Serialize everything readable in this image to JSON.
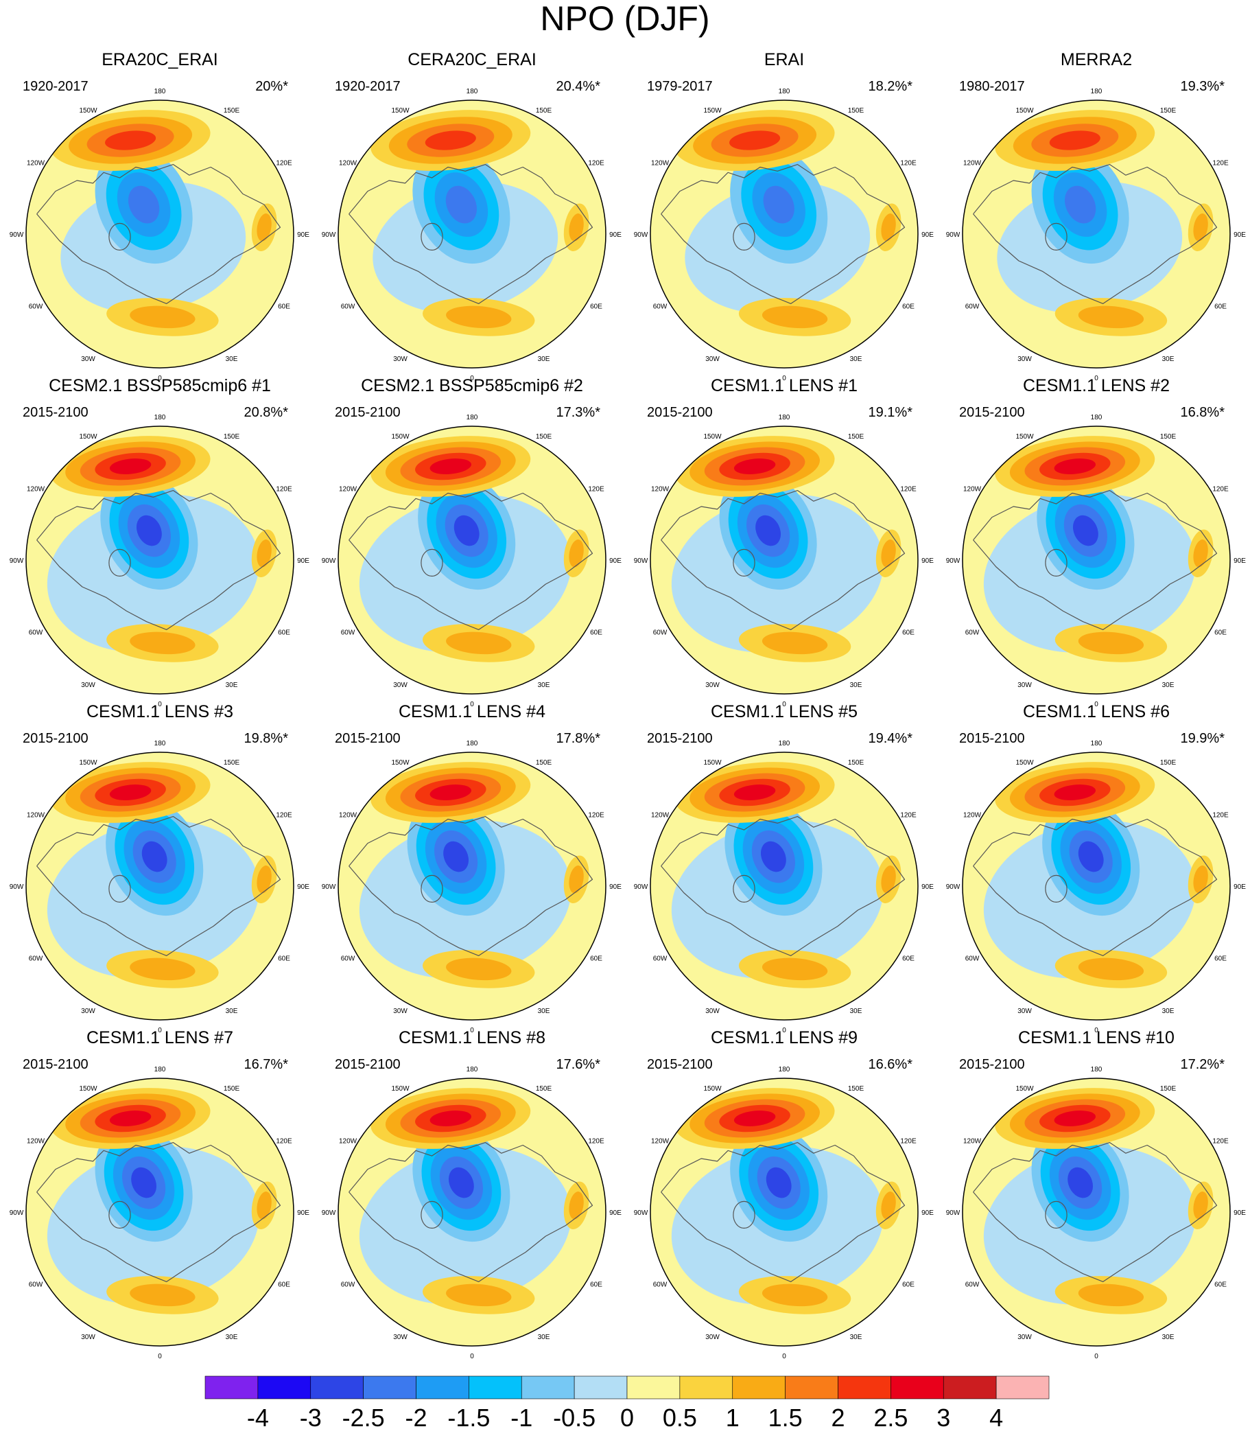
{
  "title": "NPO (DJF)",
  "longitude_labels": [
    "180",
    "150E",
    "120E",
    "90E",
    "60E",
    "30E",
    "0",
    "30W",
    "60W",
    "90W",
    "120W",
    "150W"
  ],
  "colorbar": {
    "levels": [
      "-4",
      "-3",
      "-2.5",
      "-2",
      "-1.5",
      "-1",
      "-0.5",
      "0",
      "0.5",
      "1",
      "1.5",
      "2",
      "2.5",
      "3",
      "4"
    ],
    "colors": [
      "#7f22ee",
      "#1c08f4",
      "#2d45e6",
      "#3c79ee",
      "#1e9cf4",
      "#04c1fb",
      "#76c8f4",
      "#b3def5",
      "#fbf79b",
      "#fad33e",
      "#f9ab15",
      "#f97c18",
      "#f5360e",
      "#e9001b",
      "#cc1d20",
      "#fbb3b3"
    ]
  },
  "chart_data": [
    {
      "type": "map",
      "title": "ERA20C_ERAI",
      "period": "1920-2017",
      "variance": "20%*"
    },
    {
      "type": "map",
      "title": "CERA20C_ERAI",
      "period": "1920-2017",
      "variance": "20.4%*"
    },
    {
      "type": "map",
      "title": "ERAI",
      "period": "1979-2017",
      "variance": "18.2%*"
    },
    {
      "type": "map",
      "title": "MERRA2",
      "period": "1980-2017",
      "variance": "19.3%*"
    },
    {
      "type": "map",
      "title": "CESM2.1 BSSP585cmip6 #1",
      "period": "2015-2100",
      "variance": "20.8%*"
    },
    {
      "type": "map",
      "title": "CESM2.1 BSSP585cmip6 #2",
      "period": "2015-2100",
      "variance": "17.3%*"
    },
    {
      "type": "map",
      "title": "CESM1.1 LENS #1",
      "period": "2015-2100",
      "variance": "19.1%*"
    },
    {
      "type": "map",
      "title": "CESM1.1 LENS #2",
      "period": "2015-2100",
      "variance": "16.8%*"
    },
    {
      "type": "map",
      "title": "CESM1.1 LENS #3",
      "period": "2015-2100",
      "variance": "19.8%*"
    },
    {
      "type": "map",
      "title": "CESM1.1 LENS #4",
      "period": "2015-2100",
      "variance": "17.8%*"
    },
    {
      "type": "map",
      "title": "CESM1.1 LENS #5",
      "period": "2015-2100",
      "variance": "19.4%*"
    },
    {
      "type": "map",
      "title": "CESM1.1 LENS #6",
      "period": "2015-2100",
      "variance": "19.9%*"
    },
    {
      "type": "map",
      "title": "CESM1.1 LENS #7",
      "period": "2015-2100",
      "variance": "16.7%*"
    },
    {
      "type": "map",
      "title": "CESM1.1 LENS #8",
      "period": "2015-2100",
      "variance": "17.6%*"
    },
    {
      "type": "map",
      "title": "CESM1.1 LENS #9",
      "period": "2015-2100",
      "variance": "16.6%*"
    },
    {
      "type": "map",
      "title": "CESM1.1 LENS #10",
      "period": "2015-2100",
      "variance": "17.2%*"
    }
  ]
}
